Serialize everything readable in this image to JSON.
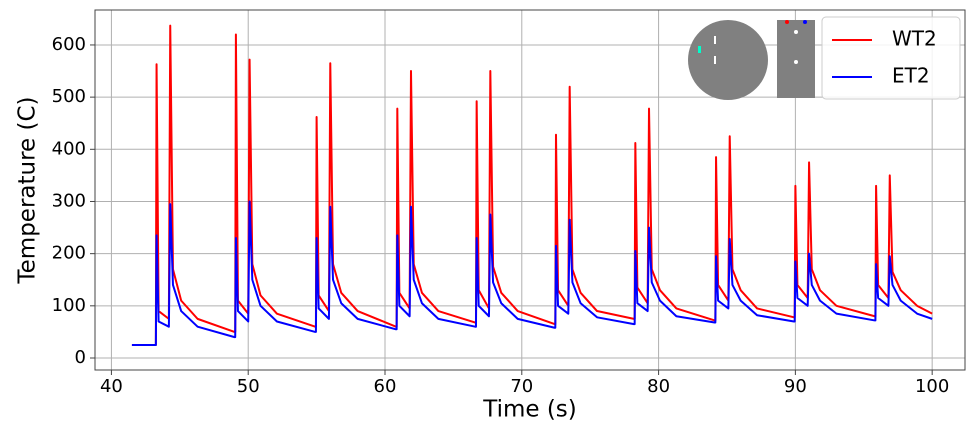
{
  "chart_data": {
    "type": "line",
    "xlabel": "Time (s)",
    "ylabel": "Temperature (C)",
    "x": [
      41.5,
      43.25,
      43.3,
      43.45,
      44.2,
      44.3,
      44.5,
      45.1,
      46.3,
      49.0,
      49.05,
      49.1,
      49.25,
      50.0,
      50.1,
      50.3,
      50.9,
      52.1,
      54.9,
      54.95,
      55,
      55.15,
      55.9,
      56,
      56.2,
      56.8,
      58,
      60.8,
      60.85,
      60.9,
      61.05,
      61.8,
      61.9,
      62.1,
      62.7,
      63.9,
      66.6,
      66.65,
      66.7,
      66.85,
      67.6,
      67.7,
      67.9,
      68.5,
      69.7,
      72.4,
      72.45,
      72.5,
      72.65,
      73.4,
      73.5,
      73.7,
      74.3,
      75.5,
      78.2,
      78.25,
      78.3,
      78.45,
      79.2,
      79.3,
      79.5,
      80.1,
      81.3,
      84.1,
      84.15,
      84.2,
      84.35,
      85.1,
      85.2,
      85.4,
      86,
      87.2,
      89.9,
      89.95,
      90,
      90.15,
      90.9,
      91,
      91.2,
      91.8,
      93,
      95.8,
      95.85,
      95.9,
      96.05,
      96.8,
      96.9,
      97.1,
      97.7,
      98.9,
      100
    ],
    "series": [
      {
        "name": "WT2",
        "color": "#ff0000",
        "values": [
          25,
          25,
          563,
          90,
          75,
          637,
          170,
          110,
          75,
          50,
          50,
          620,
          110,
          85,
          572,
          180,
          120,
          85,
          60,
          60,
          462,
          120,
          90,
          565,
          180,
          125,
          90,
          60,
          60,
          478,
          125,
          95,
          550,
          180,
          125,
          90,
          68,
          68,
          492,
          130,
          95,
          550,
          175,
          125,
          90,
          65,
          65,
          428,
          130,
          100,
          520,
          170,
          125,
          90,
          75,
          75,
          412,
          135,
          105,
          478,
          170,
          130,
          95,
          72,
          72,
          385,
          140,
          110,
          425,
          170,
          130,
          95,
          78,
          78,
          330,
          140,
          115,
          375,
          170,
          130,
          100,
          80,
          80,
          330,
          140,
          115,
          350,
          165,
          130,
          100,
          85
        ]
      },
      {
        "name": "ET2",
        "color": "#0000ff",
        "values": [
          25,
          25,
          235,
          70,
          60,
          295,
          140,
          90,
          60,
          40,
          40,
          230,
          90,
          70,
          300,
          150,
          100,
          70,
          50,
          50,
          230,
          95,
          75,
          290,
          150,
          105,
          75,
          55,
          55,
          235,
          100,
          80,
          290,
          150,
          105,
          75,
          60,
          60,
          230,
          100,
          80,
          275,
          145,
          105,
          75,
          58,
          58,
          215,
          100,
          85,
          265,
          145,
          105,
          78,
          65,
          65,
          205,
          105,
          90,
          250,
          145,
          110,
          80,
          68,
          68,
          195,
          110,
          95,
          228,
          140,
          110,
          82,
          70,
          70,
          185,
          115,
          100,
          200,
          140,
          110,
          85,
          72,
          72,
          180,
          115,
          100,
          195,
          140,
          110,
          85,
          75
        ]
      }
    ],
    "xlim": [
      38.8,
      102.4
    ],
    "ylim": [
      -23,
      667
    ],
    "xticks": [
      40,
      50,
      60,
      70,
      80,
      90,
      100
    ],
    "yticks": [
      0,
      100,
      200,
      300,
      400,
      500,
      600
    ],
    "grid": true,
    "legend": "upper right"
  }
}
